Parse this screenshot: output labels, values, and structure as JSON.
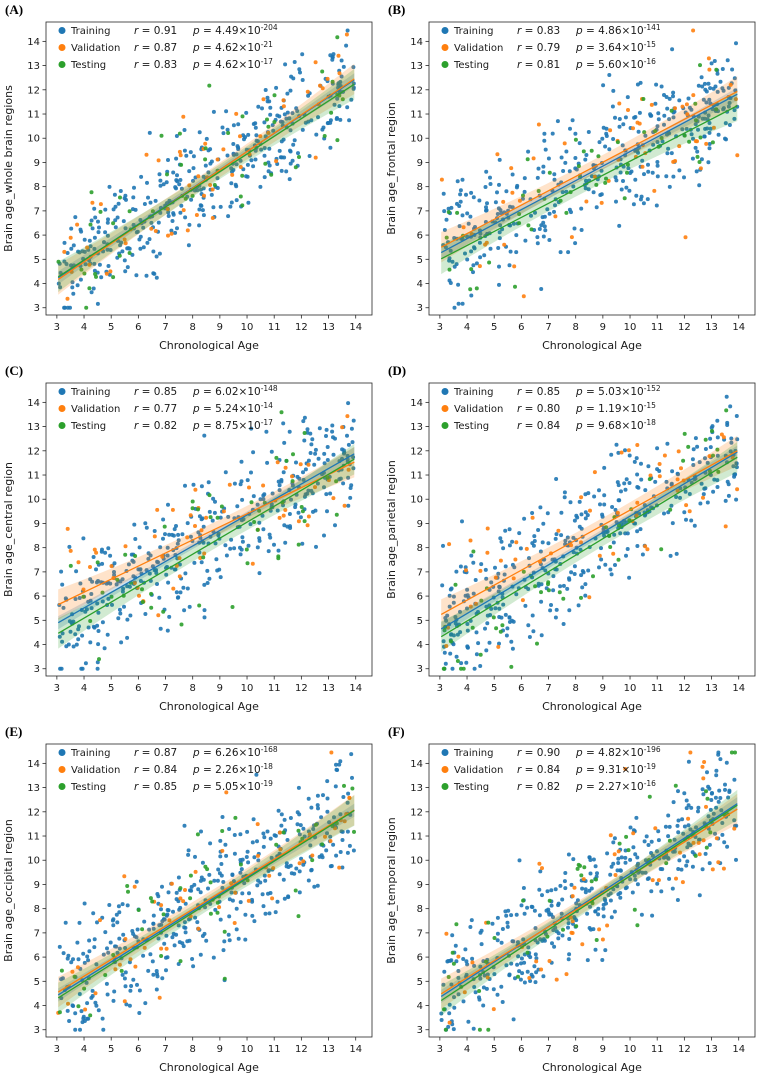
{
  "chart_data": {
    "type": "scatter",
    "xlabel": "Chronological Age",
    "xlim": [
      2.6,
      14.6
    ],
    "ylim": [
      2.7,
      14.8
    ],
    "x_ticks": [
      3,
      4,
      5,
      6,
      7,
      8,
      9,
      10,
      11,
      12,
      13,
      14
    ],
    "y_ticks": [
      3,
      4,
      5,
      6,
      7,
      8,
      9,
      10,
      11,
      12,
      13,
      14
    ],
    "legend_position": "upper-left",
    "grid": false,
    "colors": {
      "training": "#1f77b4",
      "validation": "#ff7f0e",
      "testing": "#2ca02c"
    },
    "panels": [
      {
        "label": "(A)",
        "ylabel": "Brain age_whole brain regions",
        "series": [
          {
            "name": "Training",
            "color": "#1f77b4",
            "r": 0.91,
            "p_mant": "4.49",
            "p_exp": "-204",
            "slope": 0.75,
            "intercept": 1.95,
            "n": 410
          },
          {
            "name": "Validation",
            "color": "#ff7f0e",
            "r": 0.87,
            "p_mant": "4.62",
            "p_exp": "-21",
            "slope": 0.76,
            "intercept": 1.85,
            "n": 58
          },
          {
            "name": "Testing",
            "color": "#2ca02c",
            "r": 0.83,
            "p_mant": "4.62",
            "p_exp": "-17",
            "slope": 0.73,
            "intercept": 2.05,
            "n": 52
          }
        ]
      },
      {
        "label": "(B)",
        "ylabel": "Brain age_frontal region",
        "series": [
          {
            "name": "Training",
            "color": "#1f77b4",
            "r": 0.83,
            "p_mant": "4.86",
            "p_exp": "-141",
            "slope": 0.6,
            "intercept": 3.45,
            "n": 410
          },
          {
            "name": "Validation",
            "color": "#ff7f0e",
            "r": 0.79,
            "p_mant": "3.64",
            "p_exp": "-15",
            "slope": 0.59,
            "intercept": 3.7,
            "n": 58
          },
          {
            "name": "Testing",
            "color": "#2ca02c",
            "r": 0.81,
            "p_mant": "5.60",
            "p_exp": "-16",
            "slope": 0.58,
            "intercept": 3.25,
            "n": 52
          }
        ]
      },
      {
        "label": "(C)",
        "ylabel": "Brain age_central region",
        "series": [
          {
            "name": "Training",
            "color": "#1f77b4",
            "r": 0.85,
            "p_mant": "6.02",
            "p_exp": "-148",
            "slope": 0.64,
            "intercept": 2.95,
            "n": 410
          },
          {
            "name": "Validation",
            "color": "#ff7f0e",
            "r": 0.77,
            "p_mant": "5.24",
            "p_exp": "-14",
            "slope": 0.54,
            "intercept": 4.0,
            "n": 58
          },
          {
            "name": "Testing",
            "color": "#2ca02c",
            "r": 0.82,
            "p_mant": "8.75",
            "p_exp": "-17",
            "slope": 0.66,
            "intercept": 2.45,
            "n": 52
          }
        ]
      },
      {
        "label": "(D)",
        "ylabel": "Brain age_parietal region",
        "series": [
          {
            "name": "Training",
            "color": "#1f77b4",
            "r": 0.85,
            "p_mant": "5.03",
            "p_exp": "-152",
            "slope": 0.67,
            "intercept": 2.6,
            "n": 410
          },
          {
            "name": "Validation",
            "color": "#ff7f0e",
            "r": 0.8,
            "p_mant": "1.19",
            "p_exp": "-15",
            "slope": 0.62,
            "intercept": 3.35,
            "n": 58
          },
          {
            "name": "Testing",
            "color": "#2ca02c",
            "r": 0.84,
            "p_mant": "9.68",
            "p_exp": "-18",
            "slope": 0.68,
            "intercept": 2.25,
            "n": 52
          }
        ]
      },
      {
        "label": "(E)",
        "ylabel": "Brain age_occipital region",
        "series": [
          {
            "name": "Training",
            "color": "#1f77b4",
            "r": 0.87,
            "p_mant": "6.26",
            "p_exp": "-168",
            "slope": 0.7,
            "intercept": 2.3,
            "n": 410
          },
          {
            "name": "Validation",
            "color": "#ff7f0e",
            "r": 0.84,
            "p_mant": "2.26",
            "p_exp": "-18",
            "slope": 0.69,
            "intercept": 2.45,
            "n": 58
          },
          {
            "name": "Testing",
            "color": "#2ca02c",
            "r": 0.85,
            "p_mant": "5.05",
            "p_exp": "-19",
            "slope": 0.71,
            "intercept": 2.15,
            "n": 52
          }
        ]
      },
      {
        "label": "(F)",
        "ylabel": "Brain age_temporal region",
        "series": [
          {
            "name": "Training",
            "color": "#1f77b4",
            "r": 0.9,
            "p_mant": "4.82",
            "p_exp": "-196",
            "slope": 0.73,
            "intercept": 2.15,
            "n": 410
          },
          {
            "name": "Validation",
            "color": "#ff7f0e",
            "r": 0.84,
            "p_mant": "9.31",
            "p_exp": "-19",
            "slope": 0.7,
            "intercept": 2.35,
            "n": 58
          },
          {
            "name": "Testing",
            "color": "#2ca02c",
            "r": 0.82,
            "p_mant": "2.27",
            "p_exp": "-16",
            "slope": 0.74,
            "intercept": 1.95,
            "n": 52
          }
        ]
      }
    ]
  }
}
